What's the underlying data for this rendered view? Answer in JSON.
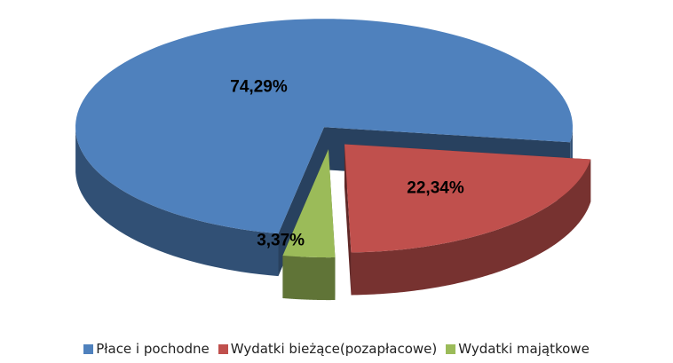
{
  "chart_data": {
    "type": "pie",
    "categories": [
      "Płace i pochodne",
      "Wydatki bieżące(pozapłacowe)",
      "Wydatki majątkowe"
    ],
    "values": [
      74.29,
      22.34,
      3.37
    ],
    "value_labels": [
      "74,29%",
      "22,34%",
      "3,37%"
    ],
    "colors": [
      "#4f81bd",
      "#c0504d",
      "#9bbb59"
    ],
    "legend": "bottom"
  }
}
